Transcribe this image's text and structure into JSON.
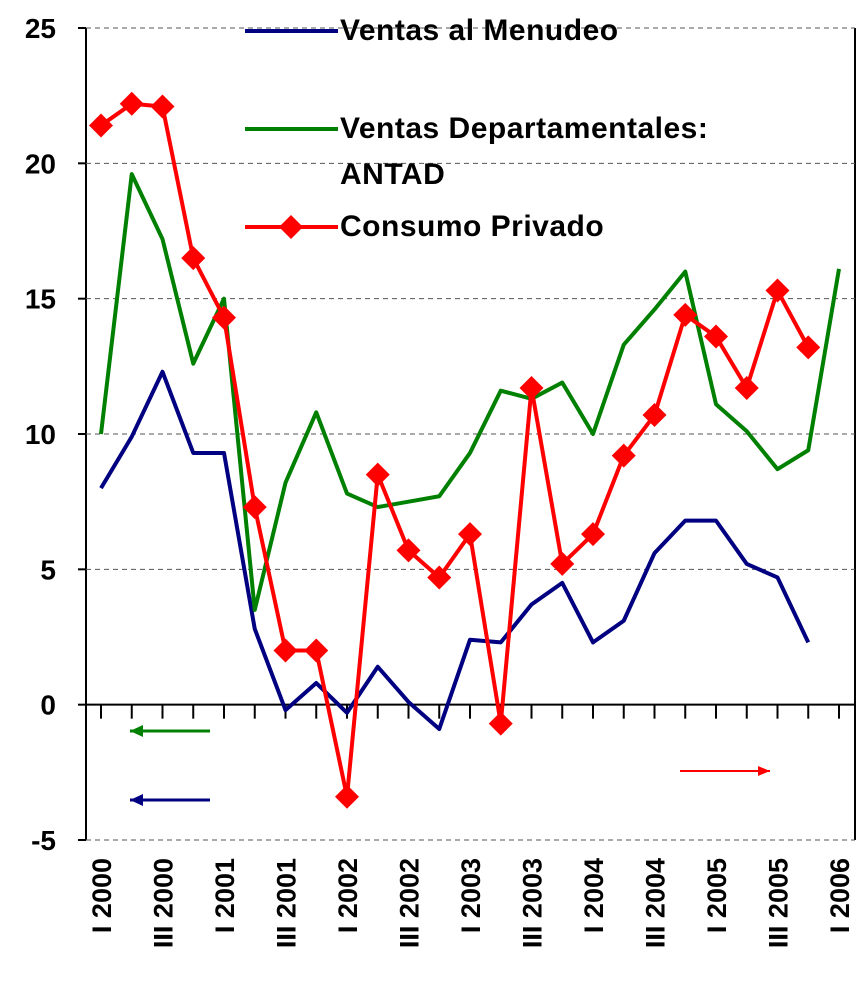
{
  "chart_data": {
    "type": "line",
    "categories": [
      "I 2000",
      null,
      "III 2000",
      null,
      "I 2001",
      null,
      "III 2001",
      null,
      "I 2002",
      null,
      "III 2002",
      null,
      "I 2003",
      null,
      "III 2003",
      null,
      "I 2004",
      null,
      "III 2004",
      null,
      "I 2005",
      null,
      "III 2005",
      null,
      "I 2006"
    ],
    "series": [
      {
        "name": "Ventas al Menudeo",
        "color": "#000080",
        "values": [
          8,
          9.9,
          12.3,
          9.3,
          9.3,
          2.8,
          -0.2,
          0.8,
          -0.3,
          1.4,
          0.1,
          -0.9,
          2.4,
          2.3,
          3.7,
          4.5,
          2.3,
          3.1,
          5.6,
          6.8,
          6.8,
          5.2,
          4.7,
          2.3,
          null
        ]
      },
      {
        "name": "Ventas Departamentales: ANTAD",
        "color": "#008000",
        "values": [
          10,
          19.6,
          17.2,
          12.6,
          15,
          3.5,
          8.2,
          10.8,
          7.8,
          7.3,
          7.5,
          7.7,
          9.3,
          11.6,
          11.3,
          11.9,
          10,
          13.3,
          14.6,
          16,
          11.1,
          10.1,
          8.7,
          9.4,
          16.1
        ]
      },
      {
        "name": "Consumo Privado",
        "color": "#ff0000",
        "marker": "diamond",
        "values": [
          21.4,
          22.2,
          22.1,
          16.5,
          14.3,
          7.3,
          2.0,
          2.0,
          -3.4,
          8.5,
          5.7,
          4.7,
          6.3,
          -0.7,
          11.7,
          5.2,
          6.3,
          9.2,
          10.7,
          14.4,
          13.6,
          11.7,
          15.3,
          13.2,
          null
        ]
      }
    ],
    "ylim": [
      -5,
      25
    ],
    "yticks": [
      -5,
      0,
      5,
      10,
      15,
      20,
      25
    ],
    "grid": true
  }
}
